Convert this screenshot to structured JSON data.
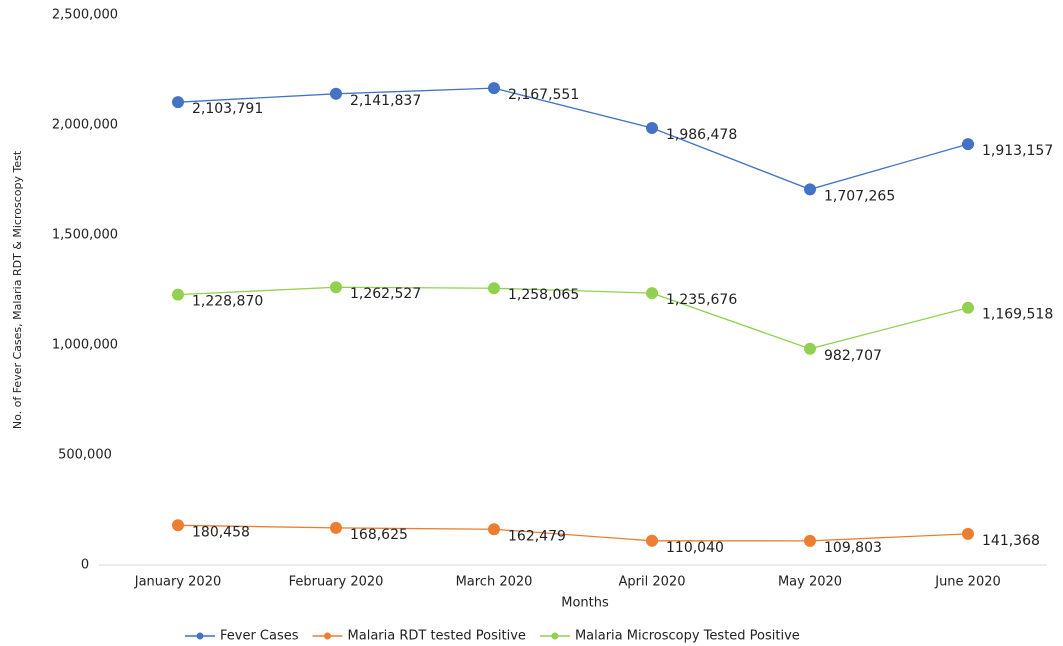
{
  "chart_data": {
    "type": "line",
    "y_axis_label": "No. of  Fever Cases, Malaria RDT & Microscopy Test",
    "x_axis_label": "Months",
    "categories": [
      "January 2020",
      "February 2020",
      "March 2020",
      "April 2020",
      "May 2020",
      "June 2020"
    ],
    "series": [
      {
        "name": "Fever Cases",
        "color": "#4472c4",
        "values": [
          2103791,
          2141837,
          2167551,
          1986478,
          1707265,
          1913157
        ],
        "value_labels": [
          "2,103,791",
          "2,141,837",
          "2,167,551",
          "1,986,478",
          "1,707,265",
          "1,913,157"
        ]
      },
      {
        "name": "Malaria RDT tested Positive",
        "color": "#ed7d31",
        "values": [
          180458,
          168625,
          162479,
          110040,
          109803,
          141368
        ],
        "value_labels": [
          "180,458",
          "168,625",
          "162,479",
          "110,040",
          "109,803",
          "141,368"
        ]
      },
      {
        "name": "Malaria Microscopy Tested Positive",
        "color": "#92d050",
        "values": [
          1228870,
          1262527,
          1258065,
          1235676,
          982707,
          1169518
        ],
        "value_labels": [
          "1,228,870",
          "1,262,527",
          "1,258,065",
          "1,235,676",
          "982,707",
          "1,169,518"
        ]
      }
    ],
    "ylim": [
      0,
      2500000
    ],
    "yticks": [
      0,
      {
        "value": 500000,
        "label": "500,000"
      },
      {
        "value": 1000000,
        "label": "1,000,000"
      },
      {
        "value": 1500000,
        "label": "1,500,000"
      },
      {
        "value": 2000000,
        "label": "2,000,000"
      },
      {
        "value": 2500000,
        "label": "2,500,000"
      }
    ],
    "legend": "bottom"
  }
}
